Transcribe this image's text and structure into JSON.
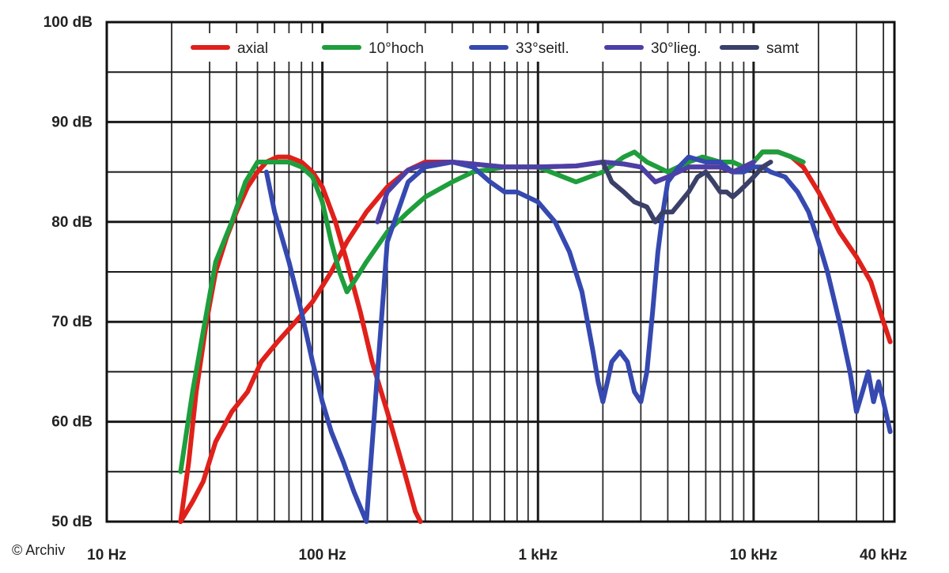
{
  "credit": "© Archiv",
  "chart_data": {
    "type": "line",
    "title": "",
    "xlabel": "",
    "ylabel": "",
    "x_scale": "log",
    "xlim": [
      10,
      45000
    ],
    "ylim": [
      50,
      100
    ],
    "grid": true,
    "legend_position": "top",
    "x_ticks": [
      {
        "value": 10,
        "label": "10 Hz"
      },
      {
        "value": 100,
        "label": "100 Hz"
      },
      {
        "value": 1000,
        "label": "1 kHz"
      },
      {
        "value": 10000,
        "label": "10 kHz"
      },
      {
        "value": 40000,
        "label": "40 kHz"
      }
    ],
    "y_ticks": [
      {
        "value": 50,
        "label": "50 dB"
      },
      {
        "value": 60,
        "label": "60 dB"
      },
      {
        "value": 70,
        "label": "70 dB"
      },
      {
        "value": 80,
        "label": "80 dB"
      },
      {
        "value": 90,
        "label": "90 dB"
      },
      {
        "value": 100,
        "label": "100 dB"
      }
    ],
    "series": [
      {
        "name": "axial",
        "color": "#e0201a",
        "values": [
          [
            22,
            50
          ],
          [
            25,
            52
          ],
          [
            28,
            54
          ],
          [
            32,
            58
          ],
          [
            38,
            61
          ],
          [
            45,
            63
          ],
          [
            52,
            66
          ],
          [
            62,
            68
          ],
          [
            75,
            70
          ],
          [
            90,
            72
          ],
          [
            110,
            75
          ],
          [
            130,
            78
          ],
          [
            160,
            81
          ],
          [
            200,
            83.5
          ],
          [
            250,
            85.2
          ],
          [
            300,
            86
          ],
          [
            400,
            86
          ],
          [
            500,
            85.8
          ],
          [
            700,
            85.5
          ],
          [
            1000,
            85.5
          ],
          [
            1500,
            85.6
          ],
          [
            2000,
            86
          ],
          [
            2500,
            85.8
          ],
          [
            3000,
            85.5
          ],
          [
            3500,
            84
          ],
          [
            4000,
            84.5
          ],
          [
            5000,
            85.5
          ],
          [
            6000,
            85.5
          ],
          [
            7000,
            85.5
          ],
          [
            8000,
            85
          ],
          [
            9000,
            85.5
          ],
          [
            10000,
            86
          ],
          [
            11000,
            87
          ],
          [
            13000,
            87
          ],
          [
            15000,
            86.5
          ],
          [
            17000,
            85.5
          ],
          [
            20000,
            83
          ],
          [
            25000,
            79
          ],
          [
            30000,
            76.5
          ],
          [
            35000,
            74
          ],
          [
            40000,
            70
          ],
          [
            43000,
            68
          ]
        ]
      },
      {
        "name": "axial",
        "color": "#e0201a",
        "values": [
          [
            22,
            50
          ],
          [
            24,
            56
          ],
          [
            26,
            63
          ],
          [
            29,
            70
          ],
          [
            32,
            75
          ],
          [
            36,
            78.5
          ],
          [
            40,
            81
          ],
          [
            45,
            83.5
          ],
          [
            50,
            85
          ],
          [
            55,
            86
          ],
          [
            62,
            86.5
          ],
          [
            70,
            86.5
          ],
          [
            80,
            86
          ],
          [
            90,
            85
          ],
          [
            100,
            83.5
          ],
          [
            115,
            80
          ],
          [
            130,
            76
          ],
          [
            150,
            71
          ],
          [
            170,
            66
          ],
          [
            200,
            61
          ],
          [
            240,
            55
          ],
          [
            270,
            51
          ],
          [
            285,
            50
          ]
        ]
      },
      {
        "name": "10°hoch",
        "color": "#1e9e3c",
        "values": [
          [
            22,
            55
          ],
          [
            25,
            63
          ],
          [
            28,
            69
          ],
          [
            32,
            76
          ],
          [
            38,
            80
          ],
          [
            44,
            84
          ],
          [
            50,
            86
          ],
          [
            60,
            86
          ],
          [
            70,
            86
          ],
          [
            80,
            85.5
          ],
          [
            90,
            84.5
          ],
          [
            100,
            82
          ],
          [
            110,
            78
          ],
          [
            120,
            75
          ],
          [
            130,
            73
          ],
          [
            140,
            74
          ],
          [
            160,
            76
          ],
          [
            200,
            79
          ],
          [
            250,
            81
          ],
          [
            300,
            82.5
          ],
          [
            400,
            84
          ],
          [
            500,
            85
          ],
          [
            700,
            85.5
          ],
          [
            1000,
            85.5
          ],
          [
            1500,
            84
          ],
          [
            2000,
            85
          ],
          [
            2500,
            86.5
          ],
          [
            2800,
            87
          ],
          [
            3200,
            86
          ],
          [
            4000,
            85
          ],
          [
            5000,
            86
          ],
          [
            5800,
            86.5
          ],
          [
            7000,
            86
          ],
          [
            8000,
            86
          ],
          [
            9000,
            85.5
          ],
          [
            10000,
            86
          ],
          [
            11000,
            87
          ],
          [
            13000,
            87
          ],
          [
            15000,
            86.5
          ],
          [
            17000,
            86
          ]
        ]
      },
      {
        "name": "33°seitl.",
        "color": "#3549b0",
        "values": [
          [
            55,
            85
          ],
          [
            60,
            81
          ],
          [
            70,
            76
          ],
          [
            80,
            71
          ],
          [
            90,
            66
          ],
          [
            100,
            62
          ],
          [
            110,
            59
          ],
          [
            125,
            56
          ],
          [
            140,
            53
          ],
          [
            160,
            50
          ],
          [
            200,
            78
          ],
          [
            250,
            84
          ],
          [
            300,
            85.5
          ],
          [
            400,
            86
          ],
          [
            500,
            85.5
          ],
          [
            600,
            84
          ],
          [
            700,
            83
          ],
          [
            800,
            83
          ],
          [
            1000,
            82
          ],
          [
            1200,
            80
          ],
          [
            1400,
            77
          ],
          [
            1600,
            73
          ],
          [
            1800,
            67
          ],
          [
            1900,
            64
          ],
          [
            2000,
            62
          ],
          [
            2100,
            64
          ],
          [
            2200,
            66
          ],
          [
            2400,
            67
          ],
          [
            2600,
            66
          ],
          [
            2800,
            63
          ],
          [
            3000,
            62
          ],
          [
            3200,
            65
          ],
          [
            3400,
            71
          ],
          [
            3600,
            77
          ],
          [
            3800,
            81
          ],
          [
            4000,
            84
          ],
          [
            4500,
            85.5
          ],
          [
            5000,
            86.5
          ],
          [
            6000,
            86
          ],
          [
            7000,
            86
          ],
          [
            8000,
            85
          ],
          [
            9000,
            85
          ],
          [
            10000,
            85.5
          ],
          [
            11000,
            85.5
          ],
          [
            12000,
            85
          ],
          [
            14000,
            84.5
          ],
          [
            16000,
            83
          ],
          [
            18000,
            81
          ],
          [
            20000,
            78
          ],
          [
            22000,
            75
          ],
          [
            25000,
            70
          ],
          [
            28000,
            65
          ],
          [
            30000,
            61
          ],
          [
            32000,
            63
          ],
          [
            34000,
            65
          ],
          [
            36000,
            62
          ],
          [
            38000,
            64
          ],
          [
            40000,
            62
          ],
          [
            43000,
            59
          ]
        ]
      },
      {
        "name": "30°lieg.",
        "color": "#4b3fa8",
        "values": [
          [
            180,
            80
          ],
          [
            200,
            83
          ],
          [
            250,
            85.2
          ],
          [
            300,
            85.8
          ],
          [
            400,
            86
          ],
          [
            500,
            85.8
          ],
          [
            700,
            85.5
          ],
          [
            1000,
            85.5
          ],
          [
            1500,
            85.6
          ],
          [
            2000,
            86
          ],
          [
            2500,
            85.8
          ],
          [
            3000,
            85.5
          ],
          [
            3500,
            84
          ],
          [
            4000,
            84.5
          ],
          [
            5000,
            85.5
          ],
          [
            6000,
            85.5
          ],
          [
            7000,
            85.5
          ],
          [
            8000,
            85
          ],
          [
            9000,
            85.5
          ],
          [
            10000,
            86
          ]
        ]
      },
      {
        "name": "samt",
        "color": "#3a4068",
        "values": [
          [
            2000,
            86
          ],
          [
            2200,
            84
          ],
          [
            2500,
            83
          ],
          [
            2800,
            82
          ],
          [
            3200,
            81.5
          ],
          [
            3500,
            80
          ],
          [
            3800,
            81
          ],
          [
            4200,
            81
          ],
          [
            5000,
            83
          ],
          [
            5500,
            84.5
          ],
          [
            6000,
            85
          ],
          [
            6500,
            84
          ],
          [
            7000,
            83
          ],
          [
            7500,
            83
          ],
          [
            8000,
            82.5
          ],
          [
            8500,
            83
          ],
          [
            9000,
            83.5
          ],
          [
            10000,
            84.5
          ],
          [
            11000,
            85.5
          ],
          [
            12000,
            86
          ]
        ]
      }
    ],
    "legend": [
      {
        "label": "axial",
        "color": "#e0201a"
      },
      {
        "label": "10°hoch",
        "color": "#1e9e3c"
      },
      {
        "label": "33°seitl.",
        "color": "#3549b0"
      },
      {
        "label": "30°lieg.",
        "color": "#4b3fa8"
      },
      {
        "label": "samt",
        "color": "#3a4068"
      }
    ]
  }
}
